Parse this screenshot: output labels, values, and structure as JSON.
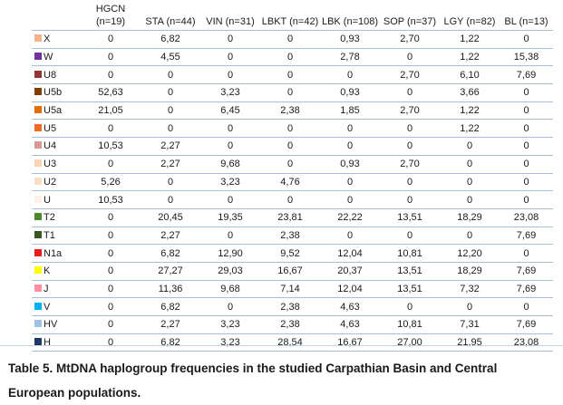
{
  "table": {
    "headers": [
      "",
      "HGCN\n(n=19)",
      "STA (n=44)",
      "VIN (n=31)",
      "LBKT (n=42)",
      "LBK (n=108)",
      "SOP (n=37)",
      "LGY (n=82)",
      "BL (n=13)"
    ],
    "rows": [
      {
        "label": "X",
        "color": "#f2b38c",
        "values": [
          "0",
          "6,82",
          "0",
          "0",
          "0,93",
          "2,70",
          "1,22",
          "0"
        ]
      },
      {
        "label": "W",
        "color": "#7030a0",
        "values": [
          "0",
          "4,55",
          "0",
          "0",
          "2,78",
          "0",
          "1,22",
          "15,38"
        ]
      },
      {
        "label": "U8",
        "color": "#943634",
        "values": [
          "0",
          "0",
          "0",
          "0",
          "0",
          "2,70",
          "6,10",
          "7,69"
        ]
      },
      {
        "label": "U5b",
        "color": "#7f3f00",
        "values": [
          "52,63",
          "0",
          "3,23",
          "0",
          "0,93",
          "0",
          "3,66",
          "0"
        ]
      },
      {
        "label": "U5a",
        "color": "#e36c09",
        "values": [
          "21,05",
          "0",
          "6,45",
          "2,38",
          "1,85",
          "2,70",
          "1,22",
          "0"
        ]
      },
      {
        "label": "U5",
        "color": "#f06a24",
        "values": [
          "0",
          "0",
          "0",
          "0",
          "0",
          "0",
          "1,22",
          "0"
        ]
      },
      {
        "label": "U4",
        "color": "#d99694",
        "values": [
          "10,53",
          "2,27",
          "0",
          "0",
          "0",
          "0",
          "0",
          "0"
        ]
      },
      {
        "label": "U3",
        "color": "#fcd5b4",
        "values": [
          "0",
          "2,27",
          "9,68",
          "0",
          "0,93",
          "2,70",
          "0",
          "0"
        ]
      },
      {
        "label": "U2",
        "color": "#f9ddc4",
        "values": [
          "5,26",
          "0",
          "3,23",
          "4,76",
          "0",
          "0",
          "0",
          "0"
        ]
      },
      {
        "label": "U",
        "color": "#fdf2e9",
        "values": [
          "10,53",
          "0",
          "0",
          "0",
          "0",
          "0",
          "0",
          "0"
        ]
      },
      {
        "label": "T2",
        "color": "#4f8a2a",
        "values": [
          "0",
          "20,45",
          "19,35",
          "23,81",
          "22,22",
          "13,51",
          "18,29",
          "23,08"
        ]
      },
      {
        "label": "T1",
        "color": "#375623",
        "values": [
          "0",
          "2,27",
          "0",
          "2,38",
          "0",
          "0",
          "0",
          "7,69"
        ]
      },
      {
        "label": "N1a",
        "color": "#e81e1e",
        "values": [
          "0",
          "6,82",
          "12,90",
          "9,52",
          "12,04",
          "10,81",
          "12,20",
          "0"
        ]
      },
      {
        "label": "K",
        "color": "#ffff00",
        "values": [
          "0",
          "27,27",
          "29,03",
          "16,67",
          "20,37",
          "13,51",
          "18,29",
          "7,69"
        ]
      },
      {
        "label": "J",
        "color": "#ff8fa3",
        "values": [
          "0",
          "11,36",
          "9,68",
          "7,14",
          "12,04",
          "13,51",
          "7,32",
          "7,69"
        ]
      },
      {
        "label": "V",
        "color": "#00b0f0",
        "values": [
          "0",
          "6,82",
          "0",
          "2,38",
          "4,63",
          "0",
          "0",
          "0"
        ]
      },
      {
        "label": "HV",
        "color": "#9dc3e6",
        "values": [
          "0",
          "2,27",
          "3,23",
          "2,38",
          "4,63",
          "10,81",
          "7,31",
          "7,69"
        ]
      },
      {
        "label": "H",
        "color": "#1f3864",
        "values": [
          "0",
          "6,82",
          "3,23",
          "28,54",
          "16,67",
          "27,00",
          "21,95",
          "23,08"
        ]
      }
    ]
  },
  "caption": "Table 5. MtDNA haplogroup frequencies in the studied Carpathian Basin and Central European populations."
}
